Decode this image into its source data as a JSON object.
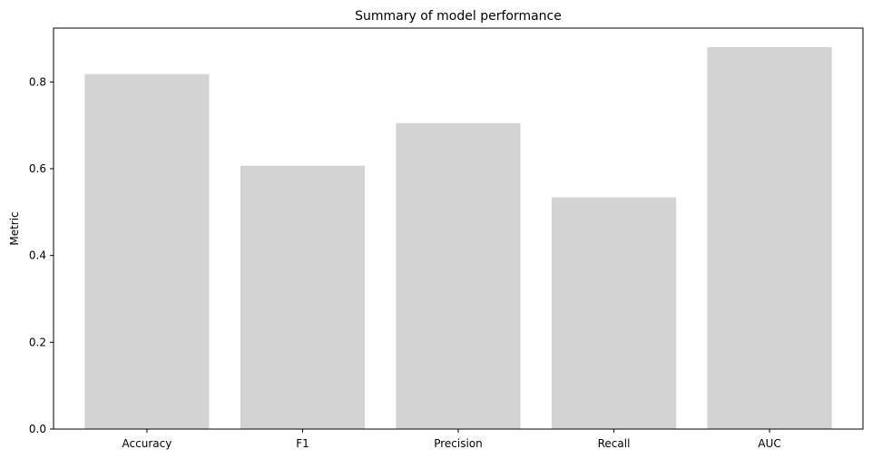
{
  "chart_data": {
    "type": "bar",
    "title": "Summary of model performance",
    "xlabel": "",
    "ylabel": "Metric",
    "categories": [
      "Accuracy",
      "F1",
      "Precision",
      "Recall",
      "AUC"
    ],
    "values": [
      0.818,
      0.607,
      0.705,
      0.534,
      0.88
    ],
    "ylim": [
      0,
      0.924
    ],
    "yticks": [
      0.0,
      0.2,
      0.4,
      0.6,
      0.8
    ],
    "ytick_labels": [
      "0.0",
      "0.2",
      "0.4",
      "0.6",
      "0.8"
    ],
    "bar_color": "#d3d3d3",
    "grid": false,
    "legend": "none"
  }
}
